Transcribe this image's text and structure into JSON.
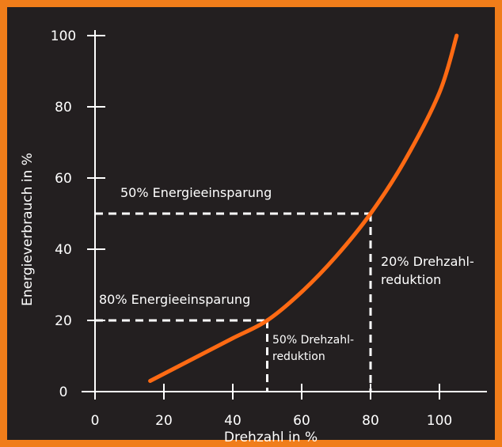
{
  "colors": {
    "background": "#231f20",
    "border": "#f07d1a",
    "curve": "#ff6a13",
    "axes": "#ffffff",
    "text": "#ffffff"
  },
  "chart_data": {
    "type": "line",
    "title": "",
    "xlabel": "Drehzahl in %",
    "ylabel": "Energieverbrauch in %",
    "xlim": [
      0,
      110
    ],
    "ylim": [
      0,
      105
    ],
    "x_ticks": [
      0,
      20,
      40,
      60,
      80,
      100
    ],
    "y_ticks": [
      0,
      20,
      40,
      60,
      80,
      100
    ],
    "grid": false,
    "legend": "none",
    "series": [
      {
        "x": [
          16,
          20,
          30,
          40,
          50,
          60,
          70,
          80,
          90,
          100,
          105
        ],
        "y": [
          3,
          5,
          10,
          15,
          20,
          28,
          38,
          50,
          65,
          84,
          100
        ]
      }
    ],
    "reference_points": [
      {
        "x": 50,
        "y": 20
      },
      {
        "x": 80,
        "y": 50
      }
    ],
    "annotations": [
      {
        "id": "savings50",
        "text": "50% Energieeinsparung"
      },
      {
        "id": "savings80",
        "text": "80% Energieeinsparung"
      },
      {
        "id": "red20_1",
        "text": "20% Drehzahl-"
      },
      {
        "id": "red20_2",
        "text": "reduktion"
      },
      {
        "id": "red50_1",
        "text": "50% Drehzahl-"
      },
      {
        "id": "red50_2",
        "text": "reduktion"
      }
    ]
  }
}
